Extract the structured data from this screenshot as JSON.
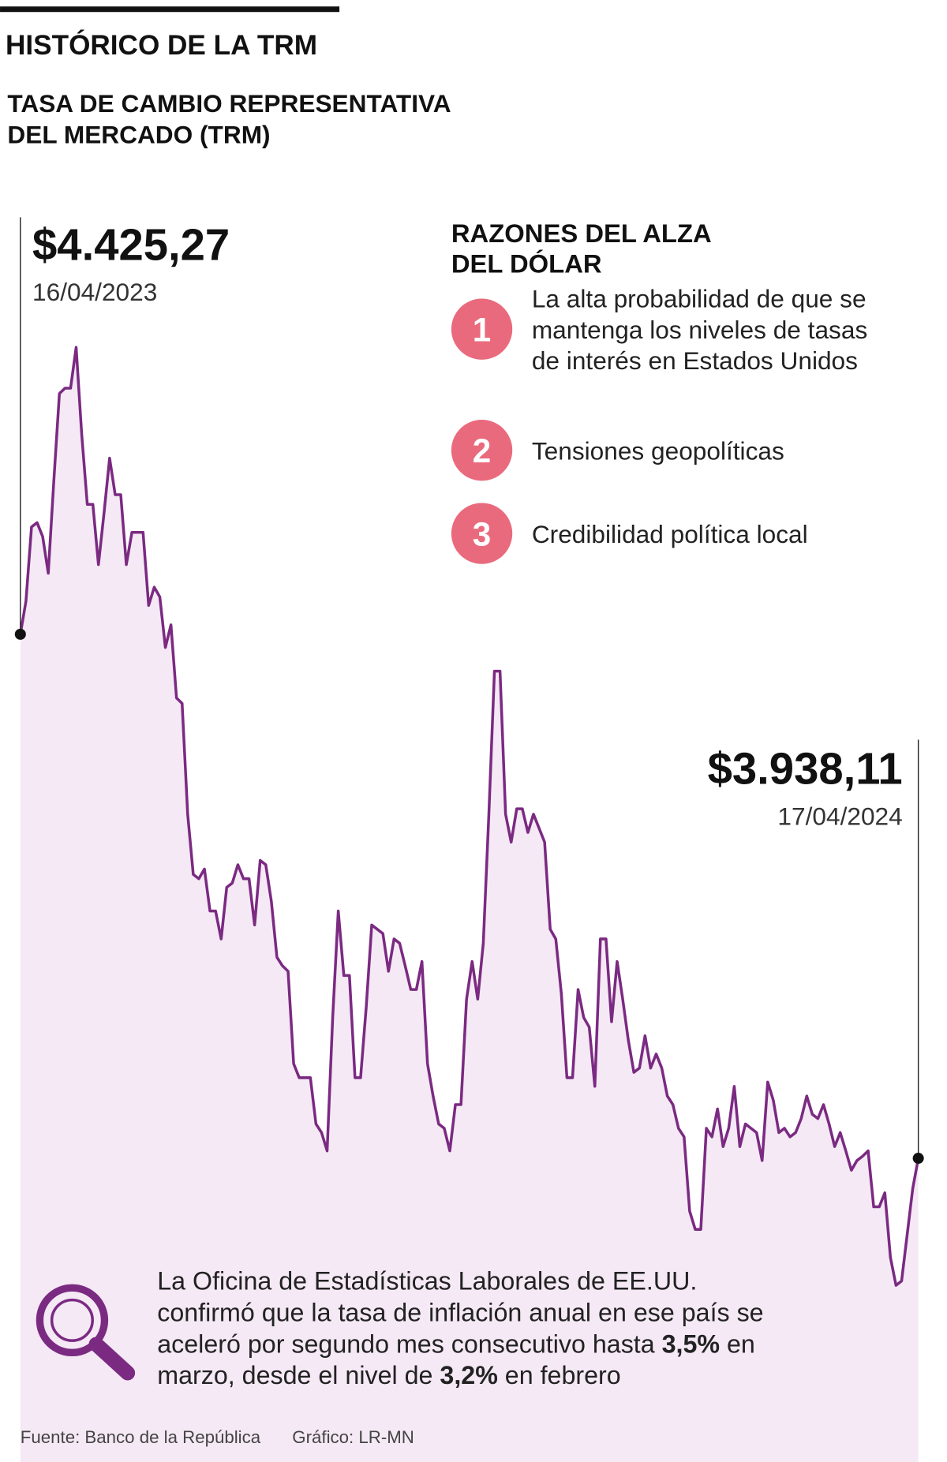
{
  "chart_data": {
    "type": "area",
    "title": "HISTÓRICO DE LA TRM",
    "subtitle": [
      "TASA DE CAMBIO REPRESENTATIVA",
      "DEL MERCADO (TRM)"
    ],
    "color": "#7b2a82",
    "fill_color": "#f4e9f4",
    "ylim": [
      3650,
      4800
    ],
    "values": [
      4425.27,
      4456,
      4525,
      4529,
      4516,
      4482,
      4568,
      4649,
      4654,
      4654,
      4692,
      4611,
      4546,
      4546,
      4490,
      4538,
      4589,
      4555,
      4555,
      4490,
      4520,
      4520,
      4520,
      4452,
      4469,
      4460,
      4413,
      4434,
      4366,
      4361,
      4258,
      4202,
      4198,
      4207,
      4168,
      4168,
      4142,
      4190,
      4194,
      4211,
      4198,
      4198,
      4155,
      4215,
      4211,
      4177,
      4125,
      4117,
      4112,
      4026,
      4013,
      4013,
      4013,
      3970,
      3962,
      3945,
      4069,
      4168,
      4108,
      4108,
      4013,
      4013,
      4078,
      4155,
      4151,
      4147,
      4112,
      4142,
      4138,
      4117,
      4095,
      4095,
      4121,
      4026,
      3996,
      3970,
      3966,
      3945,
      3988,
      3988,
      4086,
      4121,
      4086,
      4138,
      4258,
      4391,
      4391,
      4258,
      4232,
      4263,
      4263,
      4241,
      4258,
      4245,
      4232,
      4151,
      4142,
      4091,
      4013,
      4013,
      4095,
      4069,
      4060,
      4005,
      4142,
      4142,
      4065,
      4121,
      4086,
      4048,
      4018,
      4022,
      4052,
      4022,
      4035,
      4022,
      3996,
      3988,
      3966,
      3958,
      3889,
      3872,
      3872,
      3966,
      3958,
      3984,
      3949,
      3966,
      4005,
      3949,
      3970,
      3966,
      3962,
      3936,
      4009,
      3992,
      3962,
      3966,
      3958,
      3962,
      3975,
      3996,
      3979,
      3975,
      3988,
      3970,
      3949,
      3962,
      3945,
      3927,
      3936,
      3940,
      3945,
      3893,
      3893,
      3906,
      3846,
      3820,
      3824,
      3867,
      3910,
      3938.11
    ],
    "categories": [
      "16/04/2023",
      null,
      null,
      null,
      null,
      null,
      null,
      null,
      null,
      null,
      null,
      null,
      null,
      null,
      null,
      null,
      null,
      null,
      null,
      null,
      null,
      null,
      null,
      null,
      null,
      null,
      null,
      null,
      null,
      null,
      null,
      null,
      null,
      null,
      null,
      null,
      null,
      null,
      null,
      null,
      null,
      null,
      null,
      null,
      null,
      null,
      null,
      null,
      null,
      null,
      null,
      null,
      null,
      null,
      null,
      null,
      null,
      null,
      null,
      null,
      null,
      null,
      null,
      null,
      null,
      null,
      null,
      null,
      null,
      null,
      null,
      null,
      null,
      null,
      null,
      null,
      null,
      null,
      null,
      null,
      null,
      null,
      null,
      null,
      null,
      null,
      null,
      null,
      null,
      null,
      null,
      null,
      null,
      null,
      null,
      null,
      null,
      null,
      null,
      null,
      null,
      null,
      null,
      null,
      null,
      null,
      null,
      null,
      null,
      null,
      null,
      null,
      null,
      null,
      null,
      null,
      null,
      null,
      null,
      null,
      null,
      null,
      null,
      null,
      null,
      null,
      null,
      null,
      null,
      null,
      null,
      null,
      null,
      null,
      null,
      null,
      null,
      null,
      null,
      null,
      null,
      null,
      null,
      null,
      null,
      null,
      null,
      null,
      null,
      null,
      null,
      null,
      null,
      null,
      null,
      null,
      null,
      null,
      null,
      null,
      null,
      "17/04/2024"
    ],
    "value_labels": [
      "$4.425,27",
      null,
      null,
      null,
      null,
      null,
      null,
      null,
      null,
      null,
      null,
      null,
      null,
      null,
      null,
      null,
      null,
      null,
      null,
      null,
      null,
      null,
      null,
      null,
      null,
      null,
      null,
      null,
      null,
      null,
      null,
      null,
      null,
      null,
      null,
      null,
      null,
      null,
      null,
      null,
      null,
      null,
      null,
      null,
      null,
      null,
      null,
      null,
      null,
      null,
      null,
      null,
      null,
      null,
      null,
      null,
      null,
      null,
      null,
      null,
      null,
      null,
      null,
      null,
      null,
      null,
      null,
      null,
      null,
      null,
      null,
      null,
      null,
      null,
      null,
      null,
      null,
      null,
      null,
      null,
      null,
      null,
      null,
      null,
      null,
      null,
      null,
      null,
      null,
      null,
      null,
      null,
      null,
      null,
      null,
      null,
      null,
      null,
      null,
      null,
      null,
      null,
      null,
      null,
      null,
      null,
      null,
      null,
      null,
      null,
      null,
      null,
      null,
      null,
      null,
      null,
      null,
      null,
      null,
      null,
      null,
      null,
      null,
      null,
      null,
      null,
      null,
      null,
      null,
      null,
      null,
      null,
      null,
      null,
      null,
      null,
      null,
      null,
      null,
      null,
      null,
      null,
      null,
      null,
      null,
      null,
      null,
      null,
      null,
      null,
      null,
      null,
      null,
      null,
      null,
      null,
      null,
      null,
      null,
      null,
      null,
      "$3.938,11"
    ],
    "reasons": {
      "heading": [
        "RAZONES DEL ALZA",
        "DEL DÓLAR"
      ],
      "items": [
        {
          "number": "1",
          "lines": [
            "La alta probabilidad de que se",
            "mantenga los niveles de tasas",
            "de interés en Estados Unidos"
          ]
        },
        {
          "number": "2",
          "lines": [
            "Tensiones geopolíticas"
          ]
        },
        {
          "number": "3",
          "lines": [
            "Credibilidad política local"
          ]
        }
      ]
    },
    "note": [
      [
        {
          "text": "La Oficina de Estadísticas Laborales de EE.UU."
        }
      ],
      [
        {
          "text": "confirmó que la tasa de inflación anual en ese país se"
        }
      ],
      [
        {
          "text": "aceleró por segundo mes consecutivo hasta "
        },
        {
          "text": "3,5%",
          "bold": true
        },
        {
          "text": " en"
        }
      ],
      [
        {
          "text": "marzo, desde el nivel de "
        },
        {
          "text": "3,2%",
          "bold": true
        },
        {
          "text": " en febrero"
        }
      ]
    ],
    "source": "Fuente: Banco de la República",
    "credit": "Gráfico: LR-MN"
  }
}
